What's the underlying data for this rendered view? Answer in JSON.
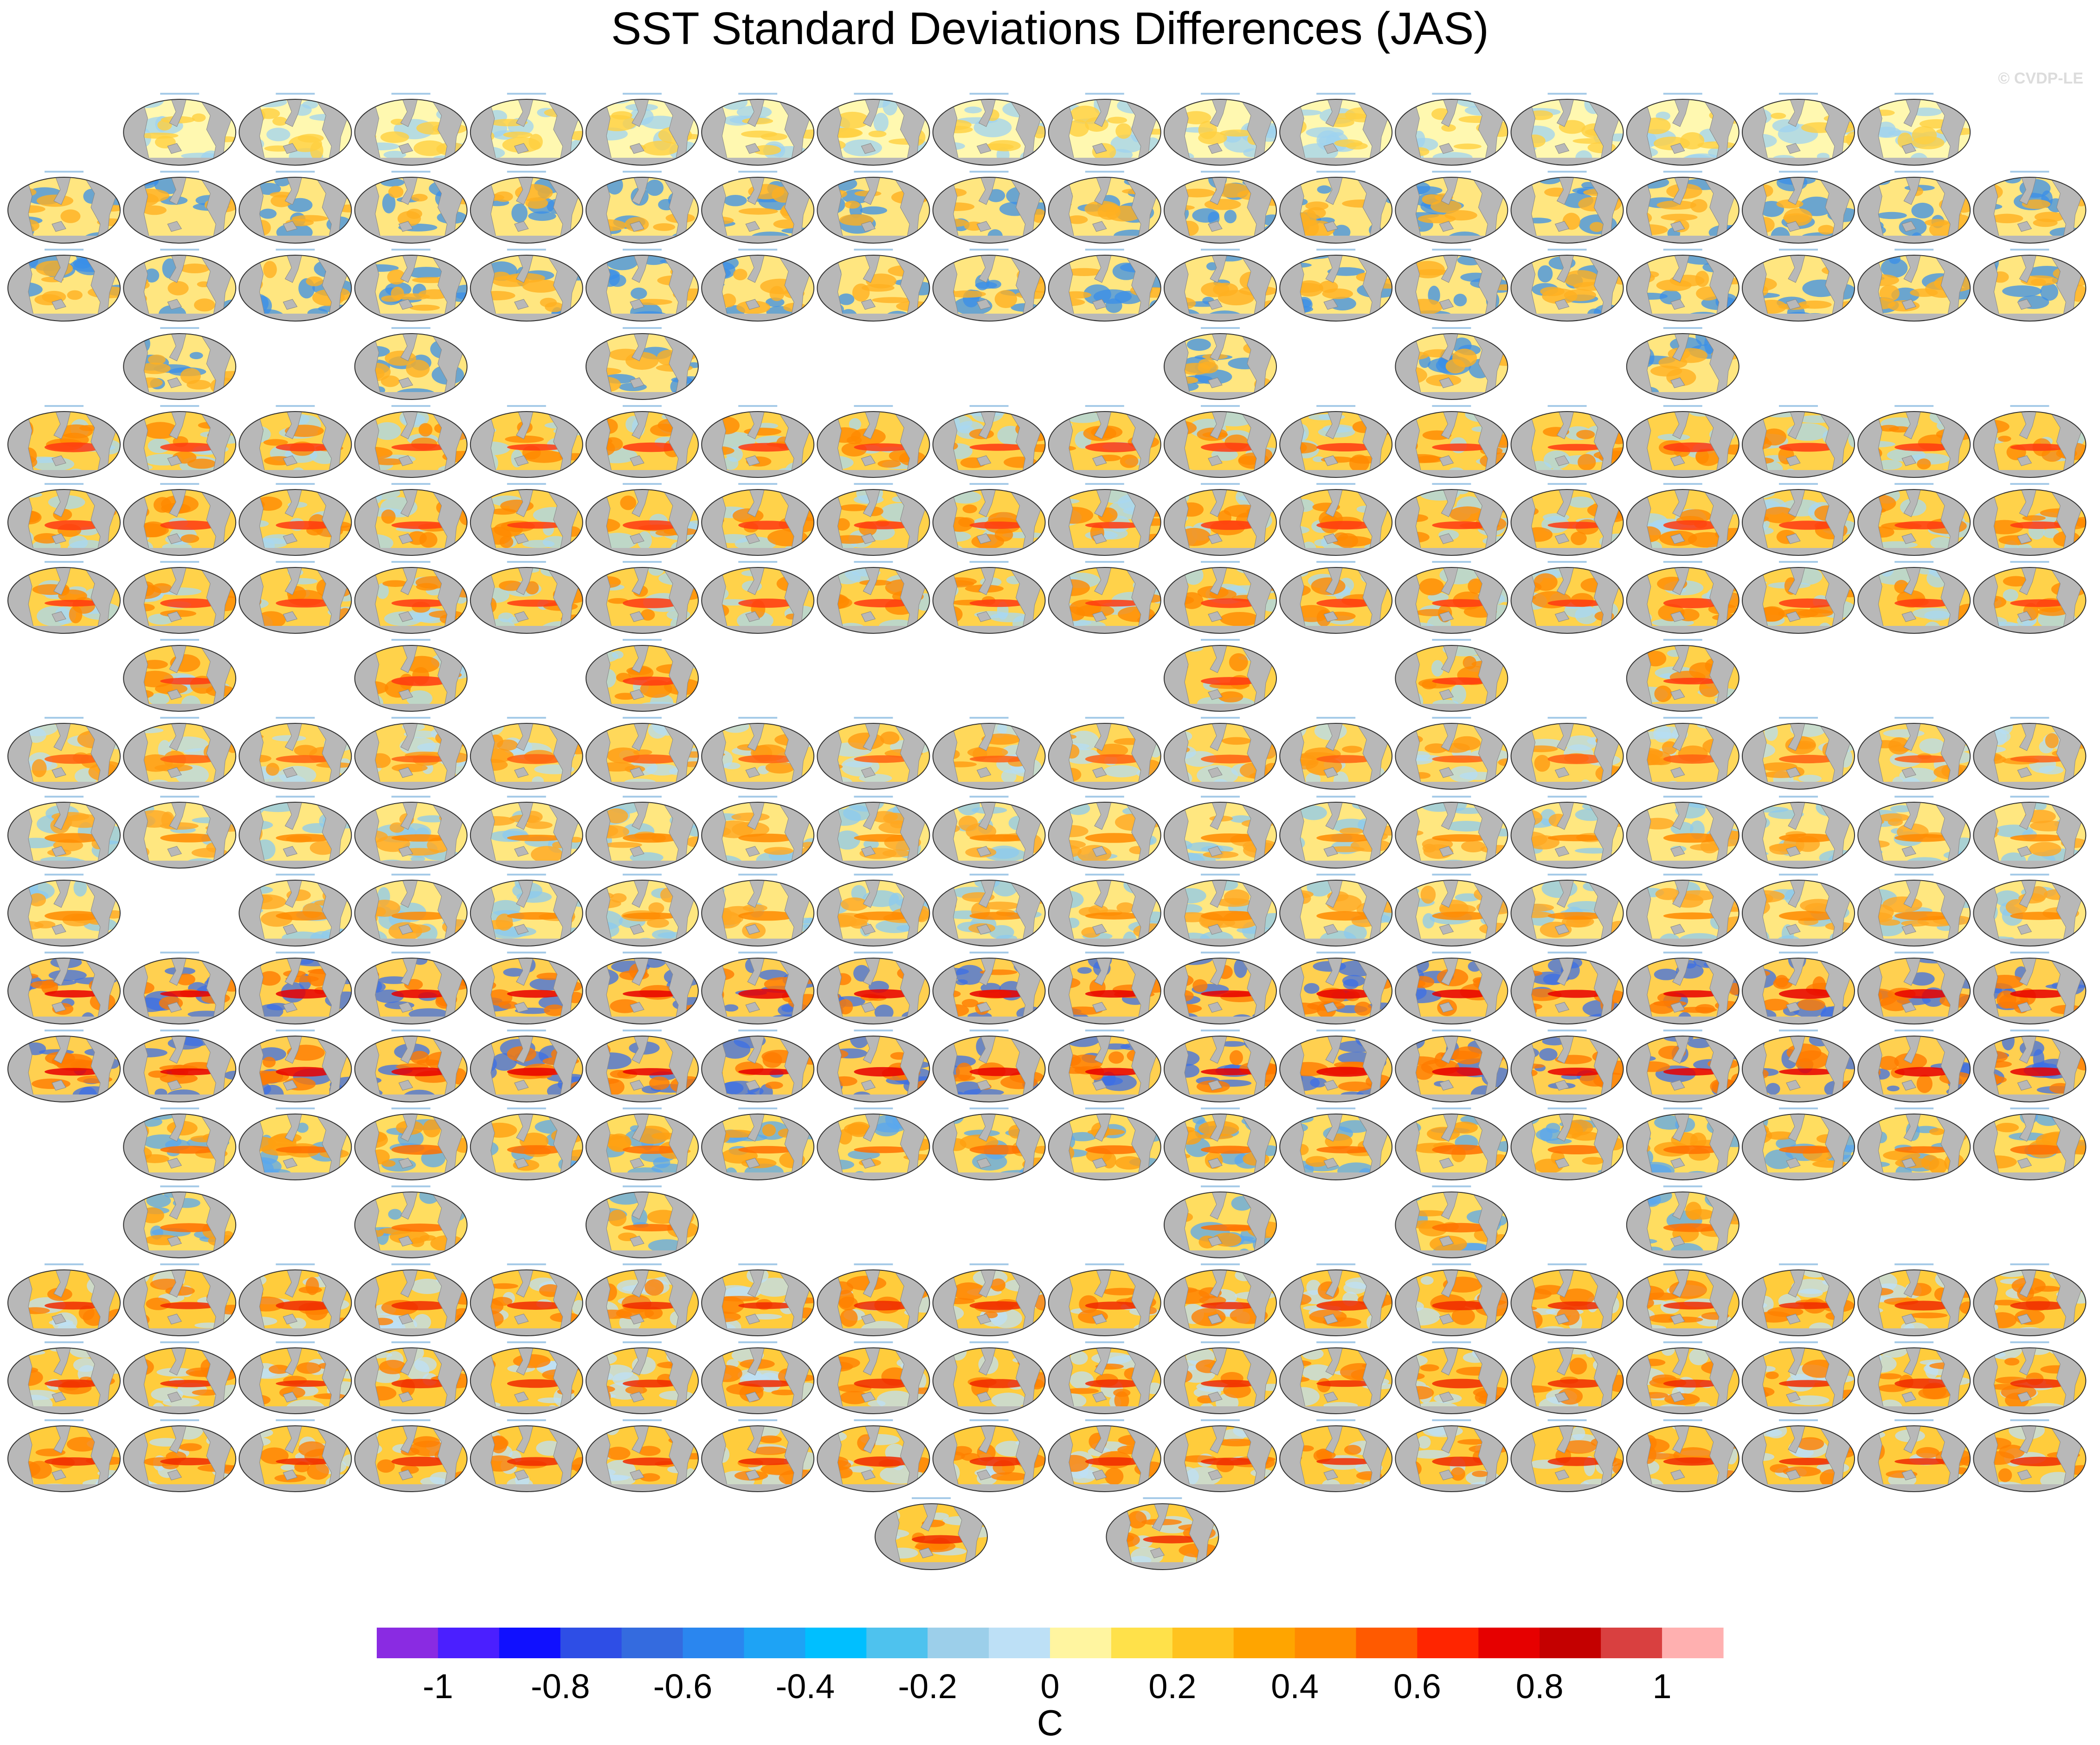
{
  "title": "SST Standard Deviations Differences (JAS)",
  "watermark": "© CVDP-LE",
  "chart_data": {
    "type": "heatmap",
    "title": "SST Standard Deviations Differences (JAS)",
    "description_note": "",
    "colorbar": {
      "unit": "C",
      "tick_labels": [
        "-1",
        "-0.8",
        "-0.6",
        "-0.4",
        "-0.2",
        "0",
        "0.2",
        "0.4",
        "0.6",
        "0.8",
        "1"
      ],
      "tick_values": [
        -1,
        -0.8,
        -0.6,
        -0.4,
        -0.2,
        0,
        0.2,
        0.4,
        0.6,
        0.8,
        1
      ],
      "levels": [
        -1.1,
        1.1
      ],
      "colors": [
        "#8a2be2",
        "#4b1fff",
        "#1010ff",
        "#2e4ee6",
        "#346bdf",
        "#2a86ef",
        "#1ea3f5",
        "#00bfff",
        "#4ec2ee",
        "#9ccfea",
        "#bde0f6",
        "#fff5a0",
        "#ffe14a",
        "#ffc31f",
        "#ffa500",
        "#ff8a00",
        "#ff5a00",
        "#ff2500",
        "#e60000",
        "#c40000",
        "#d94040",
        "#ffb0b0"
      ]
    },
    "panel_rows": [
      {
        "count": 16,
        "offset": 1,
        "theme": "obs"
      },
      {
        "count": 18,
        "offset": 0,
        "theme": "canesm"
      },
      {
        "count": 18,
        "offset": 0,
        "theme": "canesm"
      },
      {
        "count": 6,
        "cols": [
          1,
          3,
          5,
          10,
          12,
          14
        ],
        "theme": "canesm"
      },
      {
        "count": 18,
        "offset": 0,
        "theme": "cesm"
      },
      {
        "count": 18,
        "offset": 0,
        "theme": "cesm"
      },
      {
        "count": 18,
        "offset": 0,
        "theme": "cesm"
      },
      {
        "count": 6,
        "cols": [
          1,
          3,
          5,
          10,
          12,
          14
        ],
        "theme": "cesm"
      },
      {
        "count": 18,
        "offset": 0,
        "theme": "cesm2"
      },
      {
        "count": 18,
        "offset": 0,
        "theme": "csiro"
      },
      {
        "count": 17,
        "cols": [
          0,
          2,
          3,
          4,
          5,
          6,
          7,
          8,
          9,
          10,
          11,
          12,
          13,
          14,
          15,
          16,
          17
        ],
        "theme": "csiro"
      },
      {
        "count": 18,
        "offset": 0,
        "theme": "giss"
      },
      {
        "count": 18,
        "offset": 0,
        "theme": "giss"
      },
      {
        "count": 17,
        "offset": 1,
        "theme": "ipsl"
      },
      {
        "count": 6,
        "cols": [
          1,
          3,
          5,
          10,
          12,
          14
        ],
        "theme": "ipsl"
      },
      {
        "count": 18,
        "offset": 0,
        "theme": "mpi"
      },
      {
        "count": 18,
        "offset": 0,
        "theme": "mpi"
      },
      {
        "count": 18,
        "offset": 0,
        "theme": "mpi"
      },
      {
        "count": 2,
        "cols": [
          7.5,
          9.5
        ],
        "theme": "mpi"
      }
    ]
  }
}
